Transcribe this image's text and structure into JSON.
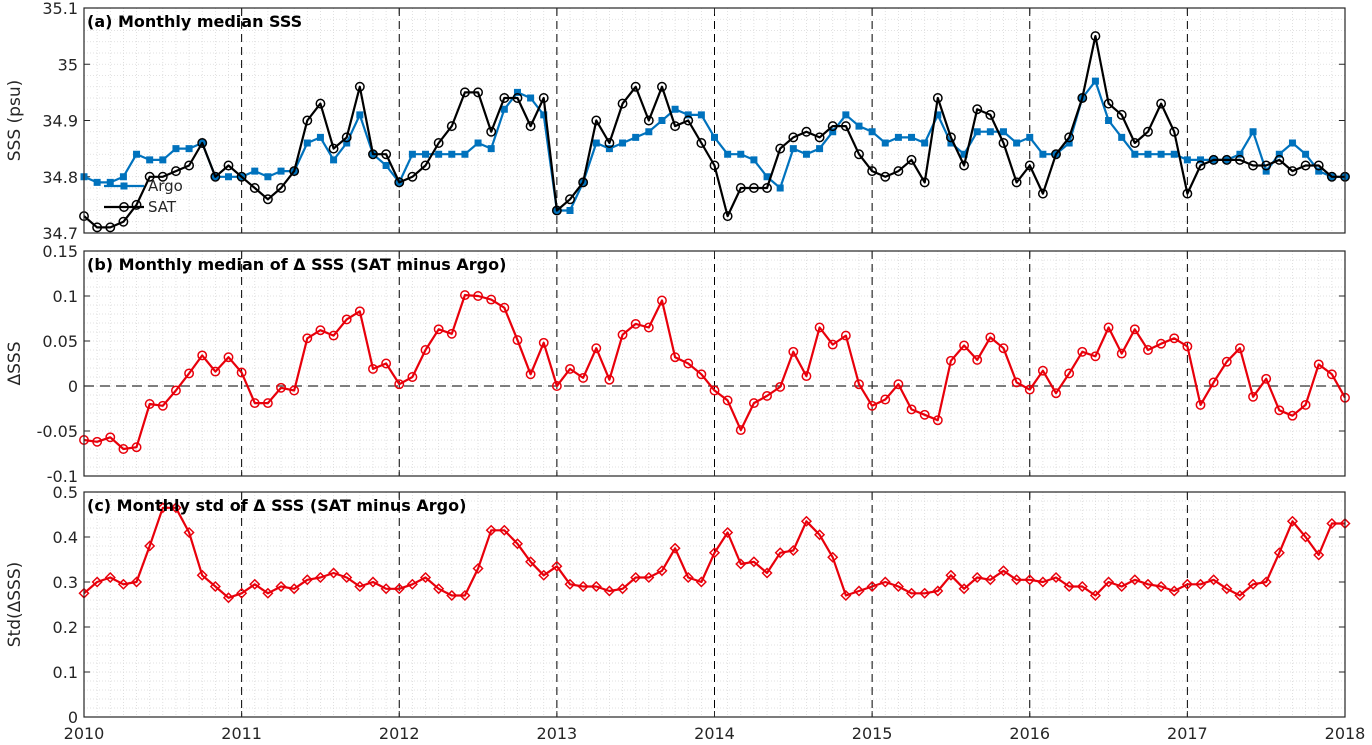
{
  "chart_data": [
    {
      "id": "a",
      "type": "line",
      "title": "(a) Monthly median SSS",
      "ylabel": "SSS (psu)",
      "ylim": [
        34.7,
        35.1
      ],
      "yticks": [
        34.7,
        34.8,
        34.9,
        35,
        35.1
      ],
      "ytick_labels": [
        "34.7",
        "34.8",
        "34.9",
        "35",
        "35.1"
      ],
      "legend": {
        "position": "left",
        "entries": [
          "Argo",
          "SAT"
        ]
      },
      "series": [
        {
          "name": "Argo",
          "color": "#0072BD",
          "marker": "square",
          "values": [
            34.8,
            34.79,
            34.79,
            34.8,
            34.84,
            34.83,
            34.83,
            34.85,
            34.85,
            34.86,
            34.8,
            34.8,
            34.8,
            34.81,
            34.8,
            34.81,
            34.81,
            34.86,
            34.87,
            34.83,
            34.86,
            34.91,
            34.84,
            34.82,
            34.79,
            34.84,
            34.84,
            34.84,
            34.84,
            34.84,
            34.86,
            34.85,
            34.92,
            34.95,
            34.94,
            34.91,
            34.74,
            34.74,
            34.79,
            34.86,
            34.85,
            34.86,
            34.87,
            34.88,
            34.9,
            34.92,
            34.91,
            34.91,
            34.87,
            34.84,
            34.84,
            34.83,
            34.8,
            34.78,
            34.85,
            34.84,
            34.85,
            34.88,
            34.91,
            34.89,
            34.88,
            34.86,
            34.87,
            34.87,
            34.86,
            34.91,
            34.86,
            34.84,
            34.88,
            34.88,
            34.88,
            34.86,
            34.87,
            34.84,
            34.84,
            34.86,
            34.94,
            34.97,
            34.9,
            34.87,
            34.84,
            34.84,
            34.84,
            34.84,
            34.83,
            34.83,
            34.83,
            34.83,
            34.84,
            34.88,
            34.81,
            34.84,
            34.86,
            34.84,
            34.81,
            34.8,
            34.8
          ]
        },
        {
          "name": "SAT",
          "color": "#000000",
          "marker": "circle",
          "values": [
            34.73,
            34.71,
            34.71,
            34.72,
            34.75,
            34.8,
            34.8,
            34.81,
            34.82,
            34.86,
            34.8,
            34.82,
            34.8,
            34.78,
            34.76,
            34.78,
            34.81,
            34.9,
            34.93,
            34.85,
            34.87,
            34.96,
            34.84,
            34.84,
            34.79,
            34.8,
            34.82,
            34.86,
            34.89,
            34.95,
            34.95,
            34.88,
            34.94,
            34.94,
            34.89,
            34.94,
            34.74,
            34.76,
            34.79,
            34.9,
            34.86,
            34.93,
            34.96,
            34.9,
            34.96,
            34.89,
            34.9,
            34.86,
            34.82,
            34.73,
            34.78,
            34.78,
            34.78,
            34.85,
            34.87,
            34.88,
            34.87,
            34.89,
            34.89,
            34.84,
            34.81,
            34.8,
            34.81,
            34.83,
            34.79,
            34.94,
            34.87,
            34.82,
            34.92,
            34.91,
            34.86,
            34.79,
            34.82,
            34.77,
            34.84,
            34.87,
            34.94,
            35.05,
            34.93,
            34.91,
            34.86,
            34.88,
            34.93,
            34.88,
            34.77,
            34.82,
            34.83,
            34.83,
            34.83,
            34.82,
            34.82,
            34.83,
            34.81,
            34.82,
            34.82,
            34.8,
            34.8
          ]
        }
      ]
    },
    {
      "id": "b",
      "type": "line",
      "title": "(b) Monthly median of Δ SSS (SAT minus Argo)",
      "ylabel": "ΔSSS",
      "ylim": [
        -0.1,
        0.15
      ],
      "yticks": [
        -0.1,
        -0.05,
        0,
        0.05,
        0.1,
        0.15
      ],
      "ytick_labels": [
        "-0.1",
        "-0.05",
        "0",
        "0.05",
        "0.1",
        "0.15"
      ],
      "reference_line": 0,
      "series": [
        {
          "name": "",
          "color": "#E8000B",
          "marker": "circle",
          "values": [
            -0.06,
            -0.062,
            -0.057,
            -0.07,
            -0.068,
            -0.02,
            -0.022,
            -0.005,
            0.014,
            0.034,
            0.016,
            0.032,
            0.015,
            -0.019,
            -0.019,
            -0.002,
            -0.005,
            0.053,
            0.062,
            0.056,
            0.074,
            0.083,
            0.019,
            0.025,
            0.002,
            0.01,
            0.04,
            0.063,
            0.058,
            0.101,
            0.1,
            0.096,
            0.087,
            0.051,
            0.013,
            0.048,
            0.0,
            0.019,
            0.009,
            0.042,
            0.007,
            0.057,
            0.069,
            0.065,
            0.095,
            0.032,
            0.025,
            0.013,
            -0.005,
            -0.016,
            -0.049,
            -0.019,
            -0.011,
            -0.001,
            0.038,
            0.011,
            0.065,
            0.046,
            0.056,
            0.002,
            -0.022,
            -0.015,
            0.002,
            -0.026,
            -0.032,
            -0.038,
            0.028,
            0.045,
            0.029,
            0.054,
            0.042,
            0.004,
            -0.004,
            0.017,
            -0.008,
            0.014,
            0.038,
            0.033,
            0.065,
            0.036,
            0.063,
            0.04,
            0.047,
            0.053,
            0.044,
            -0.021,
            0.004,
            0.027,
            0.042,
            -0.012,
            0.008,
            -0.027,
            -0.033,
            -0.021,
            0.024,
            0.013,
            -0.013
          ]
        }
      ]
    },
    {
      "id": "c",
      "type": "line",
      "title": "(c) Monthly std of Δ SSS (SAT minus Argo)",
      "ylabel": "Std(ΔSSS)",
      "ylim": [
        0,
        0.5
      ],
      "yticks": [
        0,
        0.1,
        0.2,
        0.3,
        0.4,
        0.5
      ],
      "ytick_labels": [
        "0",
        "0.1",
        "0.2",
        "0.3",
        "0.4",
        "0.5"
      ],
      "x_start_year": 2010,
      "xticks": [
        2010,
        2011,
        2012,
        2013,
        2014,
        2015,
        2016,
        2017,
        2018
      ],
      "xtick_labels": [
        "2010",
        "2011",
        "2012",
        "2013",
        "2014",
        "2015",
        "2016",
        "2017",
        "2018"
      ],
      "series": [
        {
          "name": "",
          "color": "#E8000B",
          "marker": "diamond",
          "values": [
            0.275,
            0.3,
            0.31,
            0.295,
            0.3,
            0.38,
            0.465,
            0.465,
            0.41,
            0.315,
            0.29,
            0.265,
            0.275,
            0.295,
            0.275,
            0.29,
            0.285,
            0.305,
            0.31,
            0.32,
            0.31,
            0.29,
            0.3,
            0.285,
            0.285,
            0.295,
            0.31,
            0.285,
            0.27,
            0.27,
            0.33,
            0.415,
            0.415,
            0.385,
            0.345,
            0.315,
            0.335,
            0.295,
            0.29,
            0.29,
            0.28,
            0.285,
            0.31,
            0.31,
            0.325,
            0.375,
            0.31,
            0.3,
            0.365,
            0.41,
            0.34,
            0.345,
            0.32,
            0.365,
            0.37,
            0.435,
            0.405,
            0.355,
            0.27,
            0.28,
            0.29,
            0.3,
            0.29,
            0.275,
            0.275,
            0.28,
            0.315,
            0.285,
            0.31,
            0.305,
            0.325,
            0.305,
            0.305,
            0.3,
            0.31,
            0.29,
            0.29,
            0.27,
            0.3,
            0.29,
            0.305,
            0.295,
            0.29,
            0.28,
            0.295,
            0.295,
            0.305,
            0.285,
            0.27,
            0.295,
            0.3,
            0.365,
            0.435,
            0.4,
            0.36,
            0.43,
            0.43
          ]
        }
      ]
    }
  ]
}
